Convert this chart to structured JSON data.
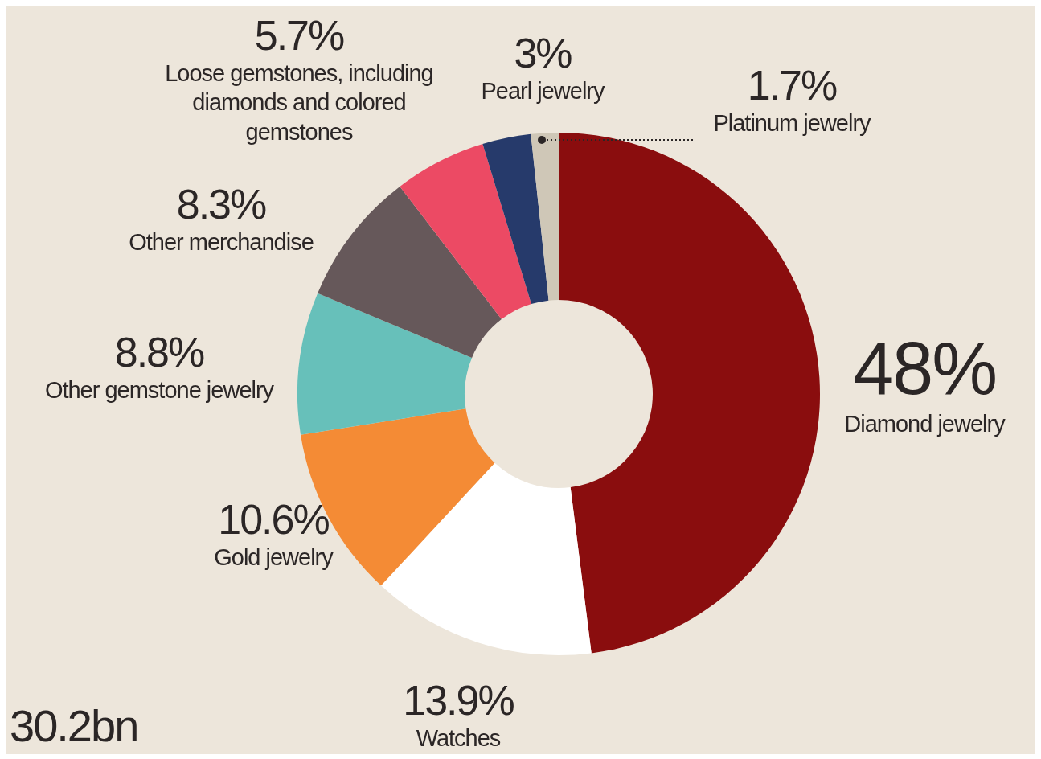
{
  "chart_data": {
    "type": "donut",
    "categories": [
      "Diamond jewelry",
      "Watches",
      "Gold jewelry",
      "Other gemstone jewelry",
      "Other merchandise",
      "Loose gemstones, including diamonds and colored gemstones",
      "Pearl jewelry",
      "Platinum jewelry"
    ],
    "values": [
      48,
      13.9,
      10.6,
      8.8,
      8.3,
      5.7,
      3,
      1.7
    ],
    "value_labels": [
      "48%",
      "13.9%",
      "10.6%",
      "8.8%",
      "8.3%",
      "5.7%",
      "3%",
      "1.7%"
    ],
    "colors": [
      "#8a0d0e",
      "#ffffff",
      "#f48b35",
      "#67c0ba",
      "#66585a",
      "#ec4a64",
      "#263a6b",
      "#cfc7b7"
    ],
    "annotations": [
      "30.2bn"
    ],
    "legend": false
  }
}
